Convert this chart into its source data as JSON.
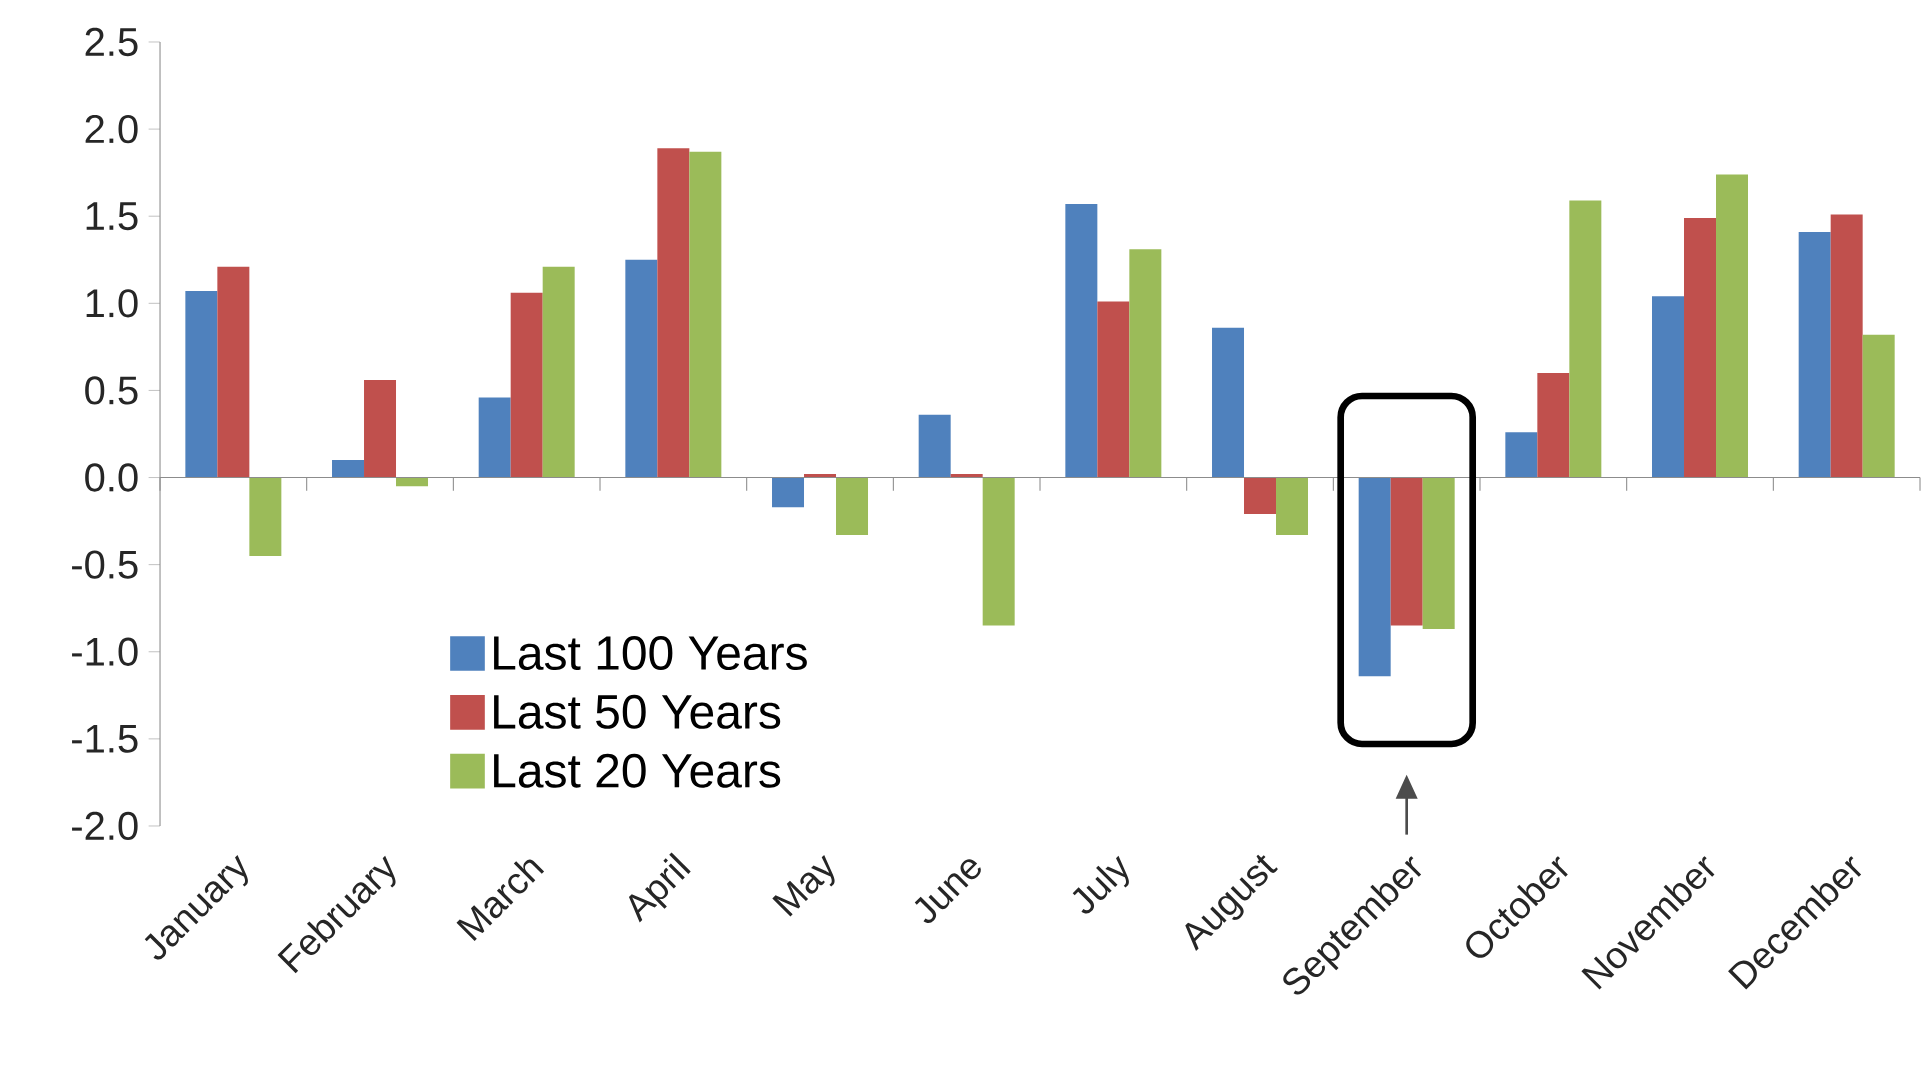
{
  "chart_data": {
    "type": "bar",
    "categories": [
      "January",
      "February",
      "March",
      "April",
      "May",
      "June",
      "July",
      "August",
      "September",
      "October",
      "November",
      "December"
    ],
    "series": [
      {
        "name": "Last 100 Years",
        "color": "#4f81bd",
        "values": [
          1.07,
          0.1,
          0.46,
          1.25,
          -0.17,
          0.36,
          1.57,
          0.86,
          -1.14,
          0.26,
          1.04,
          1.41
        ]
      },
      {
        "name": "Last 50 Years",
        "color": "#c0504d",
        "values": [
          1.21,
          0.56,
          1.06,
          1.89,
          0.02,
          0.02,
          1.01,
          -0.21,
          -0.85,
          0.6,
          1.49,
          1.51
        ]
      },
      {
        "name": "Last 20 Years",
        "color": "#9bbb59",
        "values": [
          -0.45,
          -0.05,
          1.21,
          1.87,
          -0.33,
          -0.85,
          1.31,
          -0.33,
          -0.87,
          1.59,
          1.74,
          0.82
        ]
      }
    ],
    "ylim": [
      -2.0,
      2.5
    ],
    "yticks": [
      {
        "value": -2.0,
        "label": "-2.0"
      },
      {
        "value": -1.5,
        "label": "-1.5"
      },
      {
        "value": -1.0,
        "label": "-1.0"
      },
      {
        "value": -0.5,
        "label": "-0.5"
      },
      {
        "value": 0.0,
        "label": "0.0"
      },
      {
        "value": 0.5,
        "label": "0.5"
      },
      {
        "value": 1.0,
        "label": "1.0"
      },
      {
        "value": 1.5,
        "label": "1.5"
      },
      {
        "value": 2.0,
        "label": "2.0"
      },
      {
        "value": 2.5,
        "label": "2.5"
      }
    ],
    "legend": "bottom left"
  }
}
